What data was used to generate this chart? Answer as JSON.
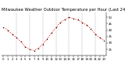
{
  "title": "Milwaukee Weather Outdoor Temperature per Hour (Last 24 Hours)",
  "hours": [
    0,
    1,
    2,
    3,
    4,
    5,
    6,
    7,
    8,
    9,
    10,
    11,
    12,
    13,
    14,
    15,
    16,
    17,
    18,
    19,
    20,
    21,
    22,
    23
  ],
  "temps": [
    42,
    40,
    37,
    34,
    31,
    27,
    25,
    24,
    26,
    29,
    33,
    38,
    42,
    46,
    48,
    50,
    49,
    48,
    46,
    44,
    41,
    37,
    34,
    32
  ],
  "line_color": "#ff0000",
  "marker_color": "#000000",
  "bg_color": "#ffffff",
  "ylim": [
    20,
    54
  ],
  "ytick_vals": [
    25,
    30,
    35,
    40,
    45,
    50
  ],
  "ytick_labels": [
    "25",
    "30",
    "35",
    "40",
    "45",
    "50"
  ],
  "vgrid_hours": [
    3,
    6,
    9,
    12,
    15,
    18,
    21
  ],
  "grid_color": "#999999",
  "title_fontsize": 3.8,
  "tick_fontsize": 2.8,
  "dpi": 100,
  "figsize": [
    1.6,
    0.87
  ]
}
